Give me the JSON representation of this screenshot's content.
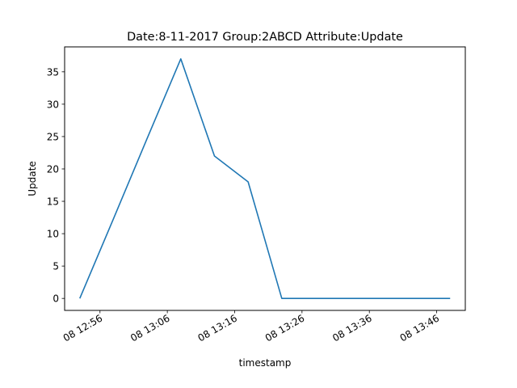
{
  "chart_data": {
    "type": "line",
    "title": "Date:8-11-2017  Group:2ABCD Attribute:Update",
    "xlabel": "timestamp",
    "ylabel": "Update",
    "x_tick_labels": [
      "08 12:56",
      "08 13:06",
      "08 13:16",
      "08 13:26",
      "08 13:36",
      "08 13:46"
    ],
    "y_tick_labels": [
      "0",
      "5",
      "10",
      "15",
      "20",
      "25",
      "30",
      "35"
    ],
    "y_ticks": [
      0,
      5,
      10,
      15,
      20,
      25,
      30,
      35
    ],
    "series": [
      {
        "color": "#1f77b4",
        "x": [
          "2017-08-08 12:53",
          "2017-08-08 12:58",
          "2017-08-08 13:03",
          "2017-08-08 13:08",
          "2017-08-08 13:13",
          "2017-08-08 13:18",
          "2017-08-08 13:23",
          "2017-08-08 13:28",
          "2017-08-08 13:33",
          "2017-08-08 13:38",
          "2017-08-08 13:43",
          "2017-08-08 13:48"
        ],
        "values": [
          0,
          12.3,
          24.7,
          37,
          22,
          18,
          0,
          0,
          0,
          0,
          0,
          0
        ]
      }
    ],
    "xlim": [
      "2017-08-08 12:50:45",
      "2017-08-08 13:50:15"
    ],
    "ylim": [
      -1.85,
      38.85
    ],
    "grid": false,
    "legend": "none"
  }
}
